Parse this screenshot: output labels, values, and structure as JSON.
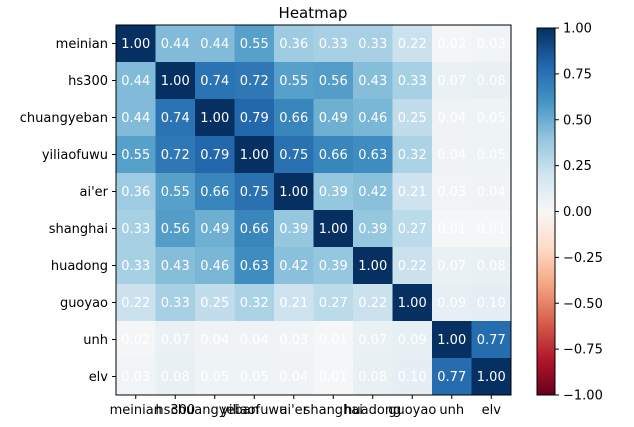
{
  "chart_data": {
    "type": "heatmap",
    "title": "Heatmap",
    "xlabel": "",
    "ylabel": "",
    "x_categories": [
      "meinian",
      "hs300",
      "chuangyeban",
      "yiliaofuwu",
      "ai'er",
      "shanghai",
      "huadong",
      "guoyao",
      "unh",
      "elv"
    ],
    "y_categories": [
      "meinian",
      "hs300",
      "chuangyeban",
      "yiliaofuwu",
      "ai'er",
      "shanghai",
      "huadong",
      "guoyao",
      "unh",
      "elv"
    ],
    "values": [
      [
        1.0,
        0.44,
        0.44,
        0.55,
        0.36,
        0.33,
        0.33,
        0.22,
        0.02,
        0.03
      ],
      [
        0.44,
        1.0,
        0.74,
        0.72,
        0.55,
        0.56,
        0.43,
        0.33,
        0.07,
        0.08
      ],
      [
        0.44,
        0.74,
        1.0,
        0.79,
        0.66,
        0.49,
        0.46,
        0.25,
        0.04,
        0.05
      ],
      [
        0.55,
        0.72,
        0.79,
        1.0,
        0.75,
        0.66,
        0.63,
        0.32,
        0.04,
        0.05
      ],
      [
        0.36,
        0.55,
        0.66,
        0.75,
        1.0,
        0.39,
        0.42,
        0.21,
        0.03,
        0.04
      ],
      [
        0.33,
        0.56,
        0.49,
        0.66,
        0.39,
        1.0,
        0.39,
        0.27,
        0.01,
        0.01
      ],
      [
        0.33,
        0.43,
        0.46,
        0.63,
        0.42,
        0.39,
        1.0,
        0.22,
        0.07,
        0.08
      ],
      [
        0.22,
        0.33,
        0.25,
        0.32,
        0.21,
        0.27,
        0.22,
        1.0,
        0.09,
        0.1
      ],
      [
        0.02,
        0.07,
        0.04,
        0.04,
        0.03,
        0.01,
        0.07,
        0.09,
        1.0,
        0.77
      ],
      [
        0.03,
        0.08,
        0.05,
        0.05,
        0.04,
        0.01,
        0.08,
        0.1,
        0.77,
        1.0
      ]
    ],
    "value_format": "0.00",
    "colormap": "RdBu",
    "vmin": -1.0,
    "vmax": 1.0,
    "colorbar_ticks": [
      "1.00",
      "0.75",
      "0.50",
      "0.25",
      "0.00",
      "−0.25",
      "−0.50",
      "−0.75",
      "−1.00"
    ],
    "colorbar_tick_values": [
      1.0,
      0.75,
      0.5,
      0.25,
      0.0,
      -0.25,
      -0.5,
      -0.75,
      -1.0
    ],
    "grid": false,
    "legend": "colorbar-right"
  }
}
